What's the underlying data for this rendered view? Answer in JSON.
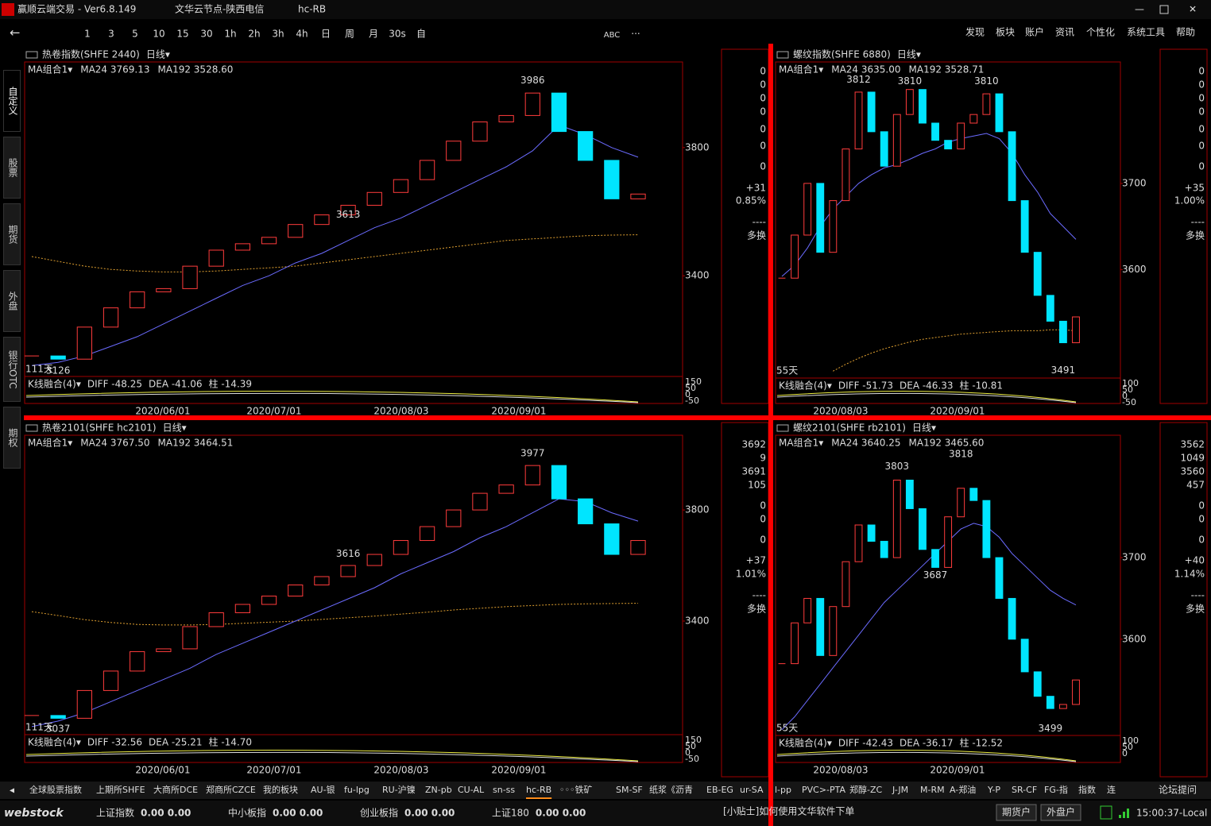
{
  "window": {
    "app_title": "赢顺云端交易 - Ver6.8.149",
    "node": "文华云节点-陕西电信",
    "symbol": "hc-RB"
  },
  "toolbar": {
    "periods": [
      "1",
      "3",
      "5",
      "10",
      "15",
      "30",
      "1h",
      "2h",
      "3h",
      "4h",
      "日",
      "周",
      "月",
      "30s",
      "自"
    ],
    "abc": "ABC",
    "more": "···",
    "menu": [
      "发现",
      "板块",
      "账户",
      "资讯",
      "个性化",
      "系统工具",
      "帮助"
    ]
  },
  "side_tabs": [
    "自定义",
    "股票",
    "期货",
    "外盘",
    "银行OTC",
    "期权"
  ],
  "panels": [
    {
      "type": "candlestick",
      "title": "热卷指数(SHFE 2440)",
      "period": "日线▾",
      "ma_group": "MA组合1▾",
      "ma24_label": "MA24 3769.13",
      "ma192_label": "MA192 3528.60",
      "ylim": [
        3086,
        4067
      ],
      "yticks": [
        3800,
        3400
      ],
      "closes": [
        3150,
        3140,
        3240,
        3300,
        3350,
        3360,
        3430,
        3480,
        3500,
        3520,
        3560,
        3590,
        3620,
        3660,
        3700,
        3760,
        3820,
        3880,
        3900,
        3970,
        3850,
        3760,
        3640,
        3655
      ],
      "ma24": [
        3120,
        3130,
        3150,
        3180,
        3210,
        3250,
        3290,
        3330,
        3370,
        3400,
        3440,
        3470,
        3510,
        3550,
        3580,
        3620,
        3660,
        3700,
        3740,
        3790,
        3870,
        3840,
        3800,
        3770
      ],
      "ma192": [
        3460,
        3445,
        3430,
        3420,
        3415,
        3412,
        3412,
        3415,
        3420,
        3425,
        3430,
        3440,
        3450,
        3460,
        3470,
        3480,
        3490,
        3500,
        3510,
        3515,
        3520,
        3525,
        3527,
        3528
      ],
      "annotations": [
        {
          "value": 3126,
          "color": "#9ff"
        },
        {
          "value": 3986,
          "color": "#ff3c3c"
        },
        {
          "value": 3613,
          "color": "#00e5ff"
        }
      ],
      "days_label": "111天",
      "macd_label": "K线融合(4)▾",
      "diff": "DIFF -48.25",
      "dea": "DEA -41.06",
      "bar": "柱 -14.39",
      "macd_ticks": [
        150,
        50,
        0,
        -50
      ],
      "dates": [
        "2020/06/01",
        "2020/07/01",
        "2020/08/03",
        "2020/09/01"
      ],
      "info": [
        {
          "text": "0",
          "color": "#fff"
        },
        {
          "text": "0",
          "color": "#fff"
        },
        {
          "text": "0",
          "color": "#fff"
        },
        {
          "text": "0",
          "color": "#fff"
        },
        {
          "text": "0",
          "color": "#fff"
        },
        {
          "text": "0",
          "color": "#fff"
        },
        {
          "text": "0",
          "color": "#fff"
        },
        {
          "text": "+31",
          "color": "#ff3c3c"
        },
        {
          "text": "0.85%",
          "color": "#ff3c3c"
        },
        {
          "text": "----",
          "color": "#ff0"
        },
        {
          "text": "多换",
          "color": "#ff0"
        }
      ]
    },
    {
      "type": "candlestick",
      "title": "螺纹指数(SHFE 6880)",
      "period": "日线▾",
      "ma_group": "MA组合1▾",
      "ma24_label": "MA24 3635.00",
      "ma192_label": "MA192 3528.71",
      "ylim": [
        3474,
        3841
      ],
      "yticks": [
        3700,
        3600
      ],
      "closes": [
        3590,
        3640,
        3700,
        3620,
        3680,
        3740,
        3806,
        3760,
        3720,
        3780,
        3809,
        3770,
        3750,
        3740,
        3770,
        3780,
        3804,
        3760,
        3680,
        3620,
        3570,
        3540,
        3515,
        3545
      ],
      "ma24": [
        3592,
        3605,
        3625,
        3650,
        3670,
        3685,
        3700,
        3710,
        3718,
        3722,
        3728,
        3735,
        3740,
        3748,
        3752,
        3755,
        3758,
        3752,
        3735,
        3710,
        3690,
        3665,
        3650,
        3635
      ],
      "ma192": [
        null,
        null,
        null,
        null,
        3482,
        3490,
        3497,
        3503,
        3508,
        3512,
        3516,
        3519,
        3521,
        3523,
        3525,
        3526,
        3527,
        3528,
        3529,
        3529,
        3529,
        3530,
        3530,
        3529
      ],
      "annotations": [
        {
          "value": 3810,
          "color": "#ff3c3c"
        },
        {
          "value": 3812,
          "color": "#ff3c3c"
        },
        {
          "value": 3810,
          "color": "#ff3c3c"
        },
        {
          "value": 3491,
          "color": "#00e5ff"
        }
      ],
      "days_label": "55天",
      "macd_label": "K线融合(4)▾",
      "diff": "DIFF -51.73",
      "dea": "DEA -46.33",
      "bar": "柱 -10.81",
      "macd_ticks": [
        100,
        50,
        0,
        -50
      ],
      "dates": [
        "2020/08/03",
        "2020/09/01"
      ],
      "info": [
        {
          "text": "0",
          "color": "#fff"
        },
        {
          "text": "0",
          "color": "#fff"
        },
        {
          "text": "0",
          "color": "#fff"
        },
        {
          "text": "0",
          "color": "#fff"
        },
        {
          "text": "0",
          "color": "#fff"
        },
        {
          "text": "0",
          "color": "#fff"
        },
        {
          "text": "0",
          "color": "#fff"
        },
        {
          "text": "+35",
          "color": "#ff3c3c"
        },
        {
          "text": "1.00%",
          "color": "#ff3c3c"
        },
        {
          "text": "----",
          "color": "#ff0"
        },
        {
          "text": "多换",
          "color": "#ff0"
        }
      ]
    },
    {
      "type": "candlestick",
      "title": "热卷2101(SHFE hc2101)",
      "period": "日线▾",
      "ma_group": "MA组合1▾",
      "ma24_label": "MA24 3767.50",
      "ma192_label": "MA192 3464.51",
      "ylim": [
        2991,
        4069
      ],
      "yticks": [
        3800,
        3400
      ],
      "closes": [
        3060,
        3050,
        3150,
        3220,
        3290,
        3300,
        3380,
        3430,
        3460,
        3490,
        3530,
        3560,
        3600,
        3640,
        3690,
        3740,
        3800,
        3860,
        3890,
        3960,
        3840,
        3750,
        3640,
        3690
      ],
      "ma24": [
        3020,
        3040,
        3070,
        3110,
        3150,
        3190,
        3230,
        3280,
        3320,
        3360,
        3400,
        3440,
        3480,
        3520,
        3570,
        3610,
        3650,
        3700,
        3740,
        3790,
        3840,
        3830,
        3790,
        3760
      ],
      "ma192": [
        3434,
        3420,
        3405,
        3395,
        3388,
        3386,
        3386,
        3388,
        3392,
        3396,
        3400,
        3406,
        3412,
        3418,
        3425,
        3432,
        3440,
        3446,
        3452,
        3456,
        3460,
        3462,
        3463,
        3464
      ],
      "annotations": [
        {
          "value": 3037,
          "color": "#9ff"
        },
        {
          "value": 3977,
          "color": "#ff3c3c"
        },
        {
          "value": 3616,
          "color": "#00e5ff"
        }
      ],
      "days_label": "111天",
      "macd_label": "K线融合(4)▾",
      "diff": "DIFF -32.56",
      "dea": "DEA -25.21",
      "bar": "柱 -14.70",
      "macd_ticks": [
        150,
        50,
        0,
        -50
      ],
      "dates": [
        "2020/06/01",
        "2020/07/01",
        "2020/08/03",
        "2020/09/01"
      ],
      "info": [
        {
          "text": "3692",
          "color": "#fff"
        },
        {
          "text": "9",
          "color": "#ff0"
        },
        {
          "text": "3691",
          "color": "#fff"
        },
        {
          "text": "105",
          "color": "#ff0"
        },
        {
          "text": "0",
          "color": "#fff"
        },
        {
          "text": "0",
          "color": "#fff"
        },
        {
          "text": "0",
          "color": "#fff"
        },
        {
          "text": "+37",
          "color": "#ff3c3c"
        },
        {
          "text": "1.01%",
          "color": "#ff3c3c"
        },
        {
          "text": "----",
          "color": "#ff0"
        },
        {
          "text": "多换",
          "color": "#ff0"
        }
      ]
    },
    {
      "type": "candlestick",
      "title": "螺纹2101(SHFE rb2101)",
      "period": "日线▾",
      "ma_group": "MA组合1▾",
      "ma24_label": "MA24 3640.25",
      "ma192_label": "MA192 3465.60",
      "ylim": [
        3482,
        3850
      ],
      "yticks": [
        3700,
        3600
      ],
      "closes": [
        3570,
        3620,
        3650,
        3580,
        3640,
        3695,
        3740,
        3720,
        3700,
        3795,
        3760,
        3710,
        3688,
        3750,
        3785,
        3770,
        3700,
        3650,
        3600,
        3560,
        3530,
        3515,
        3520,
        3550
      ],
      "ma24": [
        3489,
        3505,
        3525,
        3545,
        3565,
        3585,
        3605,
        3625,
        3645,
        3660,
        3675,
        3690,
        3705,
        3720,
        3735,
        3742,
        3738,
        3725,
        3705,
        3690,
        3675,
        3660,
        3650,
        3642
      ],
      "annotations": [
        {
          "value": 3803,
          "color": "#ff3c3c"
        },
        {
          "value": 3687,
          "color": "#00e5ff"
        },
        {
          "value": 3818,
          "color": "#ff3c3c"
        },
        {
          "value": 3499,
          "color": "#00e5ff"
        }
      ],
      "days_label": "55天",
      "macd_label": "K线融合(4)▾",
      "diff": "DIFF -42.43",
      "dea": "DEA -36.17",
      "bar": "柱 -12.52",
      "macd_ticks": [
        100,
        50,
        0
      ],
      "dates": [
        "2020/08/03",
        "2020/09/01"
      ],
      "info": [
        {
          "text": "3562",
          "color": "#fff"
        },
        {
          "text": "1049",
          "color": "#ff0"
        },
        {
          "text": "3560",
          "color": "#fff"
        },
        {
          "text": "457",
          "color": "#ff0"
        },
        {
          "text": "0",
          "color": "#fff"
        },
        {
          "text": "0",
          "color": "#fff"
        },
        {
          "text": "0",
          "color": "#fff"
        },
        {
          "text": "+40",
          "color": "#ff3c3c"
        },
        {
          "text": "1.14%",
          "color": "#ff3c3c"
        },
        {
          "text": "----",
          "color": "#ff0"
        },
        {
          "text": "多换",
          "color": "#ff0"
        }
      ]
    }
  ],
  "tabs": {
    "items": [
      "全球股票指数",
      "上期所SHFE",
      "大商所DCE",
      "郑商所CZCE",
      "我的板块",
      "AU-银",
      "fu-lpg",
      "RU-沪镍",
      "ZN-pb",
      "CU-AL",
      "sn-ss",
      "hc-RB",
      "◦◦◦铁矿",
      "SM-SF",
      "纸浆《沥青",
      "EB-EG",
      "ur-SA",
      "l-pp",
      "PVC>-PTA",
      "郑醇-ZC",
      "J-JM",
      "M-RM",
      "A-郑油",
      "Y-P",
      "SR-CF",
      "FG-指",
      "指数",
      "连"
    ],
    "active": "hc-RB",
    "forum": "论坛提问"
  },
  "status": {
    "logo": "webstock",
    "indices": [
      {
        "name": "上证指数",
        "values": "0.00  0.00"
      },
      {
        "name": "中小板指",
        "values": "0.00  0.00"
      },
      {
        "name": "创业板指",
        "values": "0.00  0.00"
      },
      {
        "name": "上证180",
        "values": "0.00  0.00"
      }
    ],
    "tip": "[小贴士]如何使用文华软件下单",
    "buttons": [
      "期货户",
      "外盘户"
    ],
    "time": "15:00:37-Local"
  }
}
